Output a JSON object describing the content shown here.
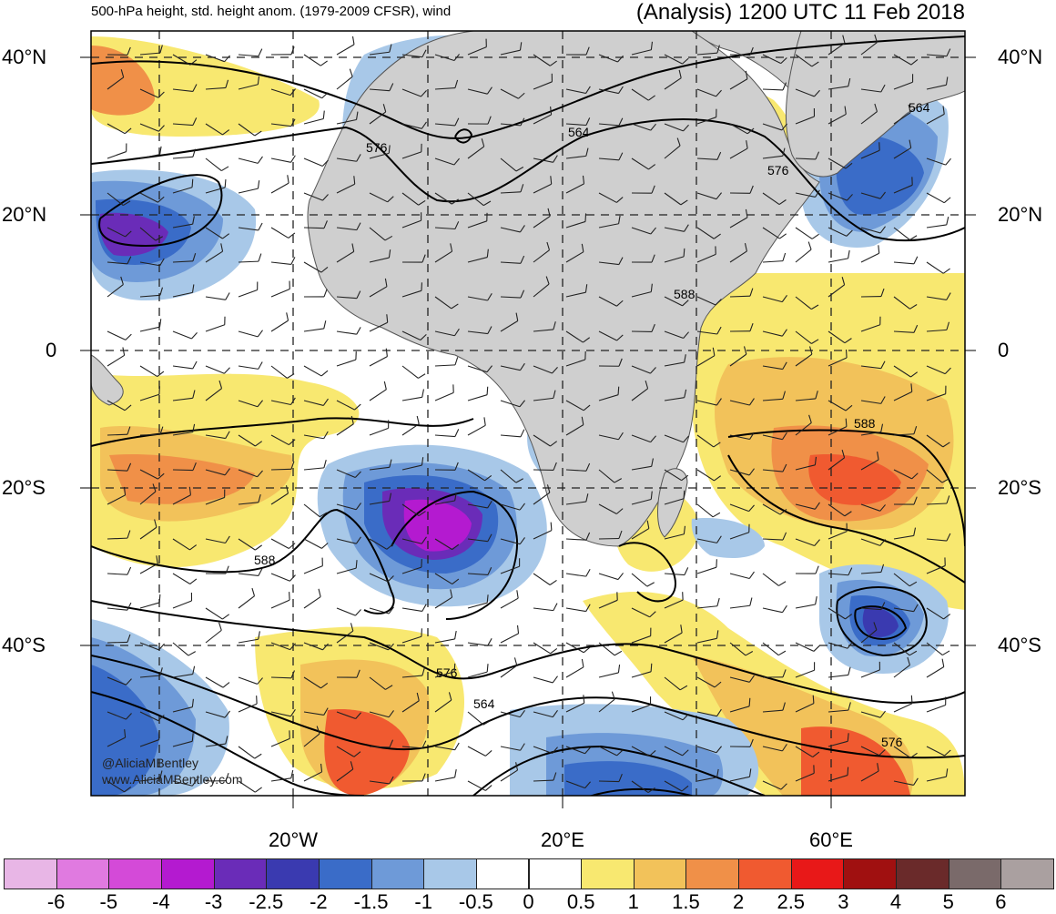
{
  "header": {
    "left_title": "500-hPa height, std. height anom. (1979-2009 CFSR), wind",
    "right_title": "(Analysis) 1200 UTC 11 Feb 2018"
  },
  "lat_labels": [
    "40°N",
    "20°N",
    "0",
    "20°S",
    "40°S"
  ],
  "lon_labels": [
    "20°W",
    "20°E",
    "60°E"
  ],
  "contour_labels": [
    "576",
    "564",
    "576",
    "588",
    "588",
    "588",
    "576",
    "564",
    "576",
    "564"
  ],
  "credit": {
    "line1": "@AliciaMBentley",
    "line2": "www.AliciaMBentley.com"
  },
  "colorbar": {
    "labels": [
      "-6",
      "-5",
      "-4",
      "-3",
      "-2.5",
      "-2",
      "-1.5",
      "-1",
      "-0.5",
      "0",
      "0.5",
      "1",
      "1.5",
      "2",
      "2.5",
      "3",
      "4",
      "5",
      "6"
    ],
    "colors": [
      "#e8b6e6",
      "#e07ae0",
      "#d44ad8",
      "#b41ad0",
      "#6a2cb8",
      "#3a3ab0",
      "#3a6cc8",
      "#6e9ad8",
      "#a8c8e8",
      "#ffffff",
      "#ffffff",
      "#f8e870",
      "#f2c25a",
      "#f09048",
      "#f05a30",
      "#e81818",
      "#a01010",
      "#6a2a2a",
      "#7a6a6a",
      "#aaa0a0"
    ]
  }
}
